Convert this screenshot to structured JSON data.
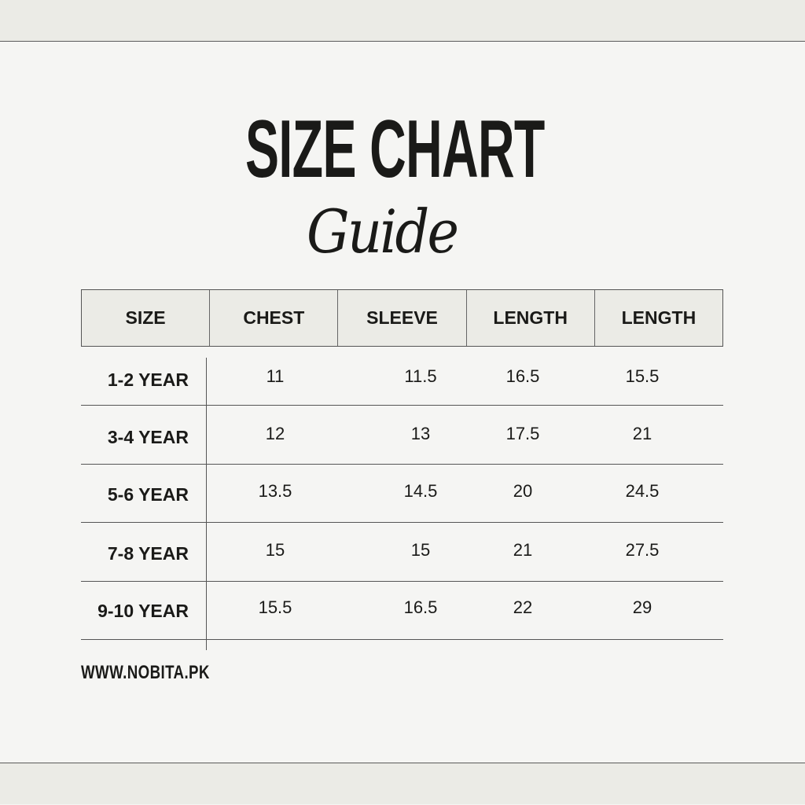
{
  "title": "SIZE CHART",
  "subtitle": "Guide",
  "table": {
    "headers": [
      "SIZE",
      "CHEST",
      "SLEEVE",
      "LENGTH",
      "LENGTH"
    ],
    "rows": [
      {
        "size": "1-2 YEAR",
        "values": [
          "11",
          "11.5",
          "16.5",
          "15.5"
        ]
      },
      {
        "size": "3-4 YEAR",
        "values": [
          "12",
          "13",
          "17.5",
          "21"
        ]
      },
      {
        "size": "5-6 YEAR",
        "values": [
          "13.5",
          "14.5",
          "20",
          "24.5"
        ]
      },
      {
        "size": "7-8 YEAR",
        "values": [
          "15",
          "15",
          "21",
          "27.5"
        ]
      },
      {
        "size": "9-10 YEAR",
        "values": [
          "15.5",
          "16.5",
          "22",
          "29"
        ]
      }
    ]
  },
  "footer": "WWW.NOBITA.PK",
  "colors": {
    "background": "#f5f5f3",
    "band": "#ebebe6",
    "text": "#1a1a18"
  }
}
